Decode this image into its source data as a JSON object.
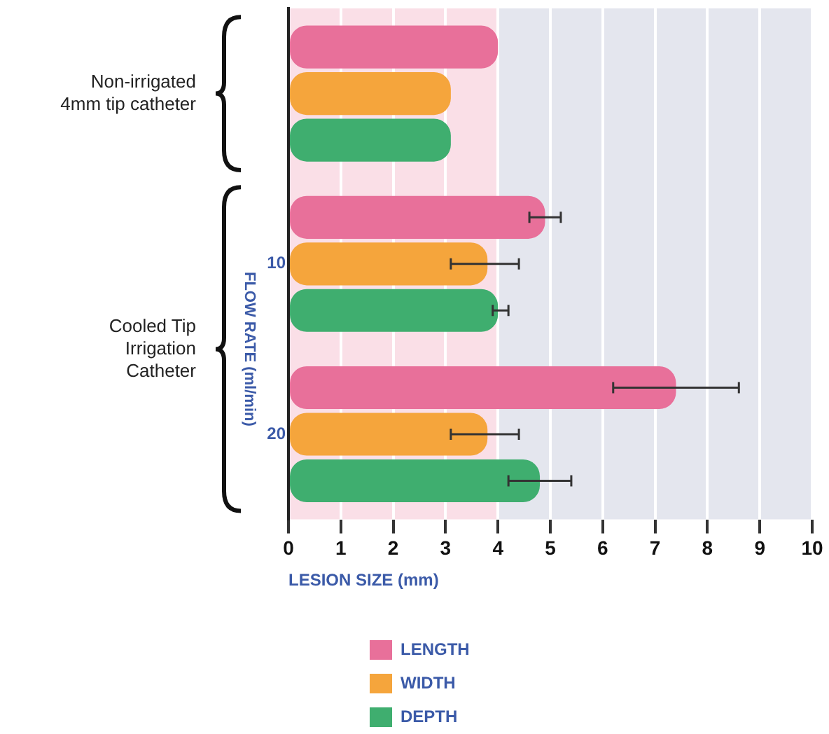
{
  "chart_data": {
    "type": "bar",
    "orientation": "horizontal",
    "categories": [
      null,
      "10",
      "20"
    ],
    "series": [
      {
        "name": "LENGTH",
        "color": "#e8709a",
        "values": [
          4.0,
          4.9,
          7.4
        ],
        "errors": [
          null,
          [
            4.6,
            5.2
          ],
          [
            6.2,
            8.6
          ]
        ]
      },
      {
        "name": "WIDTH",
        "color": "#f5a53c",
        "values": [
          3.1,
          3.8,
          3.8
        ],
        "errors": [
          null,
          [
            3.1,
            4.4
          ],
          [
            3.1,
            4.4
          ]
        ]
      },
      {
        "name": "DEPTH",
        "color": "#3fae6f",
        "values": [
          3.1,
          4.0,
          4.8
        ],
        "errors": [
          null,
          [
            3.9,
            4.2
          ],
          [
            4.2,
            5.4
          ]
        ]
      }
    ],
    "xlim": [
      0,
      10
    ],
    "xticks": [
      0,
      1,
      2,
      3,
      4,
      5,
      6,
      7,
      8,
      9,
      10
    ],
    "xlabel": "LESION SIZE (mm)",
    "ylabel": "FLOW RATE (ml/min)",
    "annotations": [
      "Non-irrigated 4mm tip catheter",
      "Cooled Tip Irrigation Catheter"
    ],
    "bands": [
      {
        "axis": "x",
        "from": 0,
        "to": 4,
        "color": "#fadfe7"
      },
      {
        "axis": "x",
        "from": 4,
        "to": 10,
        "color": "#e4e6ee"
      }
    ],
    "grid": "x",
    "legend": "bottom"
  }
}
